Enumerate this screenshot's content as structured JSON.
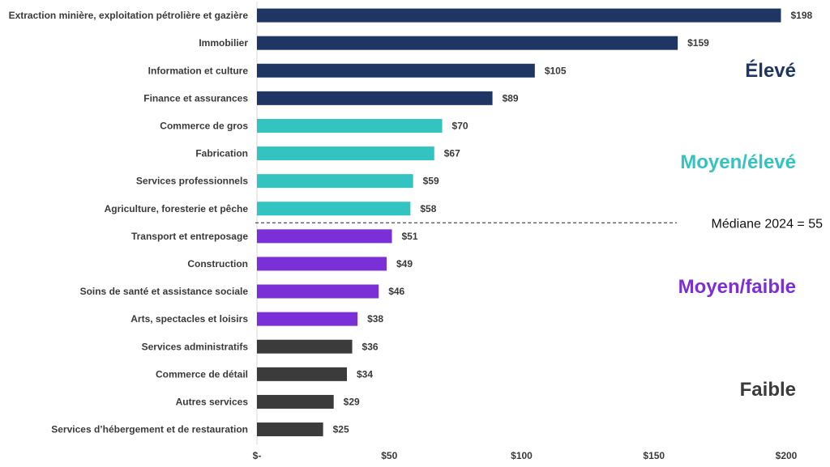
{
  "chart_data": {
    "type": "bar",
    "orientation": "horizontal",
    "title": "",
    "xlabel": "",
    "ylabel": "",
    "xlim": [
      0,
      200
    ],
    "grid": false,
    "x_ticks": [
      {
        "value": 0,
        "label": "$-"
      },
      {
        "value": 50,
        "label": "$50"
      },
      {
        "value": 100,
        "label": "$100"
      },
      {
        "value": 150,
        "label": "$150"
      },
      {
        "value": 200,
        "label": "$200"
      }
    ],
    "categories": [
      "Extraction minière, exploitation pétrolière et gazière",
      "Immobilier",
      "Information et culture",
      "Finance et assurances",
      "Commerce de gros",
      "Fabrication",
      "Services professionnels",
      "Agriculture, foresterie et pêche",
      "Transport et entreposage",
      "Construction",
      "Soins de santé et assistance sociale",
      "Arts, spectacles et loisirs",
      "Services administratifs",
      "Commerce de détail",
      "Autres services",
      "Services d’hébergement et de restauration"
    ],
    "values": [
      198,
      159,
      105,
      89,
      70,
      67,
      59,
      58,
      51,
      49,
      46,
      38,
      36,
      34,
      29,
      25
    ],
    "value_labels": [
      "$198",
      "$159",
      "$105",
      "$89",
      "$70",
      "$67",
      "$59",
      "$58",
      "$51",
      "$49",
      "$46",
      "$38",
      "$36",
      "$34",
      "$29",
      "$25"
    ],
    "groups": [
      {
        "name": "Élevé",
        "color": "#1f3563",
        "start": 0,
        "end": 3
      },
      {
        "name": "Moyen/élevé",
        "color": "#33c4c1",
        "start": 4,
        "end": 7
      },
      {
        "name": "Moyen/faible",
        "color": "#7b2fd6",
        "start": 8,
        "end": 11
      },
      {
        "name": "Faible",
        "color": "#3b3b3b",
        "start": 12,
        "end": 15
      }
    ],
    "reference_line": {
      "label": "Médiane 2024 = 55",
      "value": 55,
      "style": "dashed",
      "position": "between Agriculture, foresterie et pêche and Transport et entreposage"
    }
  }
}
